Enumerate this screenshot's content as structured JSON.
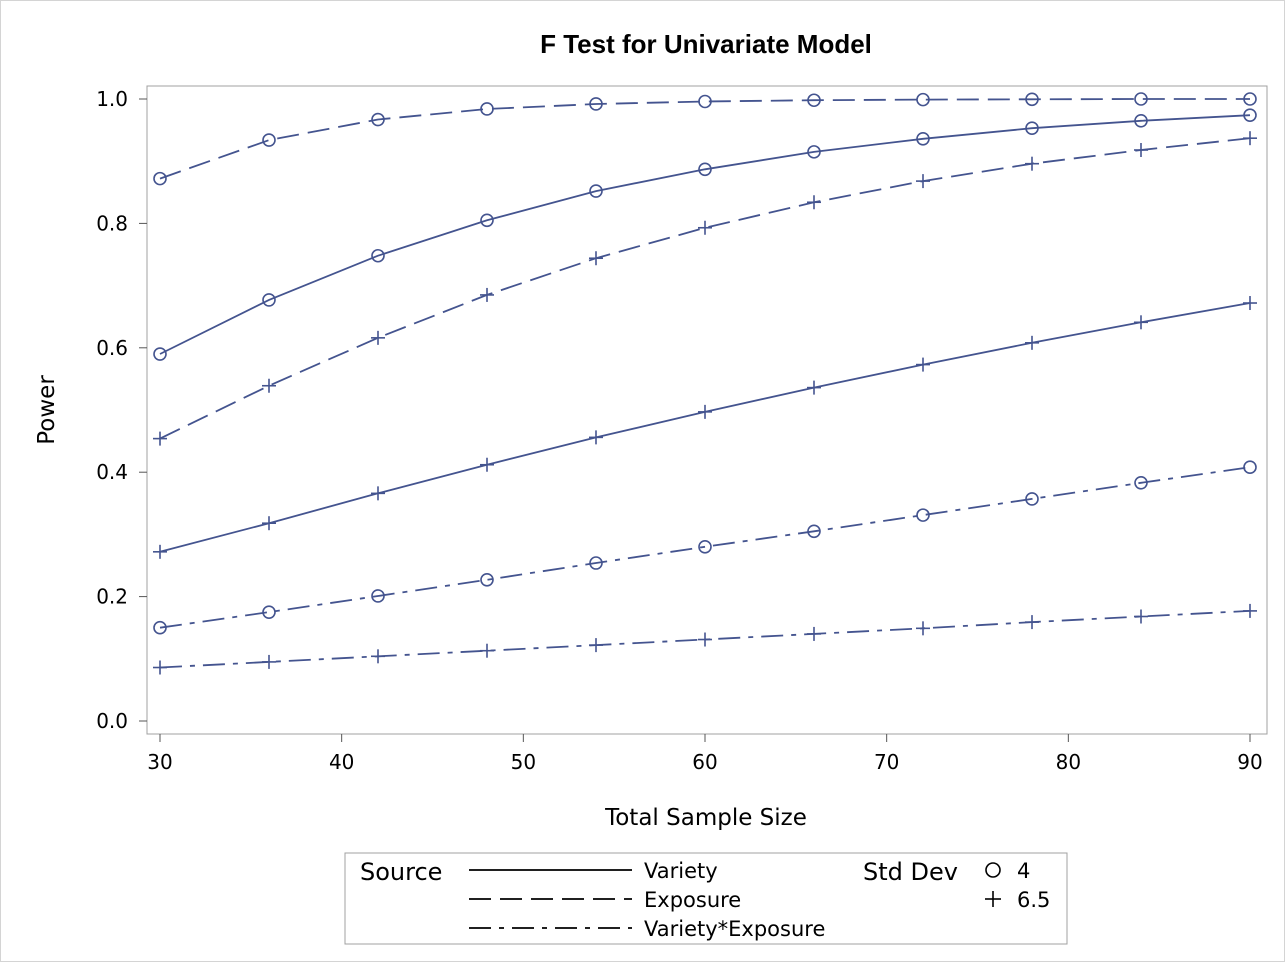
{
  "chart_data": {
    "type": "line",
    "title": "F Test for Univariate Model",
    "xlabel": "Total Sample Size",
    "ylabel": "Power",
    "x": [
      30,
      36,
      42,
      48,
      54,
      60,
      66,
      72,
      78,
      84,
      90
    ],
    "xlim": [
      29,
      91
    ],
    "ylim": [
      -0.02,
      1.02
    ],
    "xticks": [
      "30",
      "40",
      "50",
      "60",
      "70",
      "80",
      "90"
    ],
    "yticks": [
      "0.0",
      "0.2",
      "0.4",
      "0.6",
      "0.8",
      "1.0"
    ],
    "grid": false,
    "color": "#44548f",
    "series": [
      {
        "source": "Variety",
        "std_dev": "4",
        "dash": "solid",
        "marker": "circle",
        "values": [
          0.59,
          0.677,
          0.748,
          0.805,
          0.852,
          0.887,
          0.915,
          0.936,
          0.953,
          0.965,
          0.974
        ]
      },
      {
        "source": "Variety",
        "std_dev": "6.5",
        "dash": "solid",
        "marker": "plus",
        "values": [
          0.272,
          0.318,
          0.366,
          0.412,
          0.456,
          0.497,
          0.536,
          0.573,
          0.608,
          0.641,
          0.672
        ]
      },
      {
        "source": "Exposure",
        "std_dev": "4",
        "dash": "dash",
        "marker": "circle",
        "values": [
          0.872,
          0.934,
          0.967,
          0.984,
          0.992,
          0.996,
          0.998,
          0.999,
          0.9995,
          1.0,
          1.0
        ]
      },
      {
        "source": "Exposure",
        "std_dev": "6.5",
        "dash": "dash",
        "marker": "plus",
        "values": [
          0.454,
          0.539,
          0.616,
          0.685,
          0.744,
          0.793,
          0.834,
          0.868,
          0.896,
          0.918,
          0.937
        ]
      },
      {
        "source": "Variety*Exposure",
        "std_dev": "4",
        "dash": "dashdot",
        "marker": "circle",
        "values": [
          0.15,
          0.175,
          0.201,
          0.227,
          0.254,
          0.28,
          0.305,
          0.331,
          0.357,
          0.383,
          0.408
        ]
      },
      {
        "source": "Variety*Exposure",
        "std_dev": "6.5",
        "dash": "dashdot",
        "marker": "plus",
        "values": [
          0.086,
          0.095,
          0.104,
          0.113,
          0.122,
          0.131,
          0.14,
          0.149,
          0.159,
          0.168,
          0.177
        ]
      }
    ],
    "legend": {
      "position": "bottom",
      "source_title": "Source",
      "source_items": [
        {
          "label": "Variety",
          "dash": "solid"
        },
        {
          "label": "Exposure",
          "dash": "dash"
        },
        {
          "label": "Variety*Exposure",
          "dash": "dashdot"
        }
      ],
      "stddev_title": "Std Dev",
      "stddev_items": [
        {
          "label": "4",
          "marker": "circle"
        },
        {
          "label": "6.5",
          "marker": "plus"
        }
      ]
    }
  }
}
